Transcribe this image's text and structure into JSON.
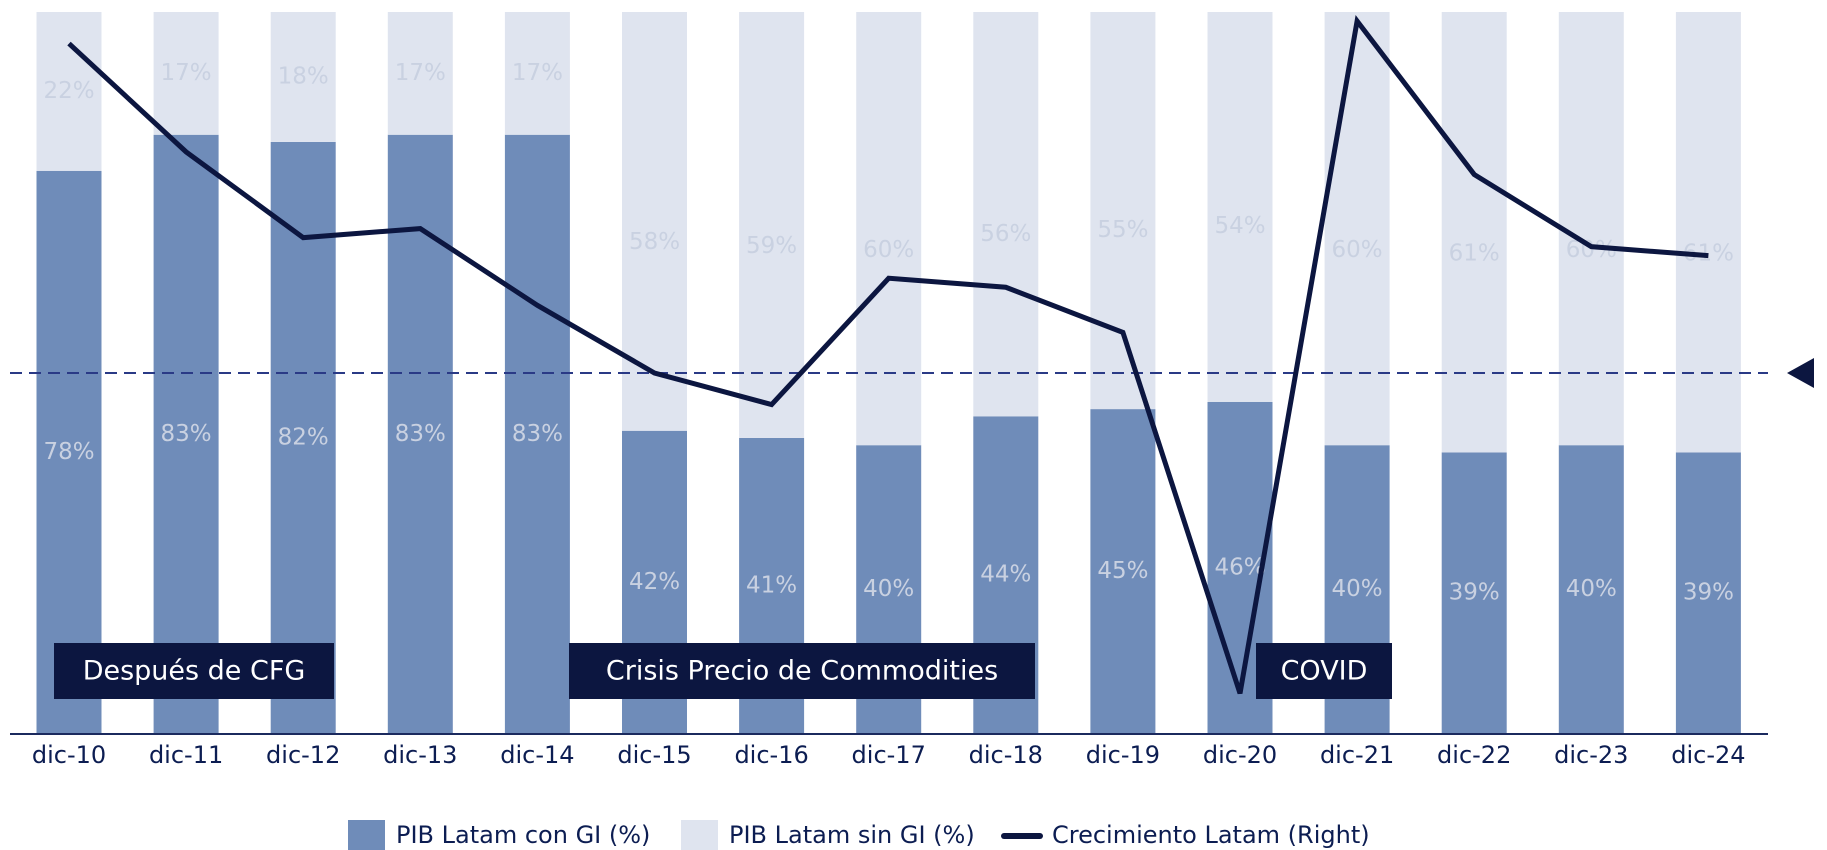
{
  "chart_data": {
    "type": "bar",
    "stacked": true,
    "categories": [
      "dic-10",
      "dic-11",
      "dic-12",
      "dic-13",
      "dic-14",
      "dic-15",
      "dic-16",
      "dic-17",
      "dic-18",
      "dic-19",
      "dic-20",
      "dic-21",
      "dic-22",
      "dic-23",
      "dic-24"
    ],
    "ylim": [
      0,
      100
    ],
    "y2lim": [
      -8,
      8
    ],
    "hline_y2": 0,
    "series": [
      {
        "name": "PIB Latam con GI (%)",
        "color": "#6f8cb9",
        "values": [
          78,
          83,
          82,
          83,
          83,
          42,
          41,
          40,
          44,
          45,
          46,
          40,
          39,
          40,
          39
        ],
        "value_labels": [
          "78%",
          "83%",
          "82%",
          "83%",
          "83%",
          "42%",
          "41%",
          "40%",
          "44%",
          "45%",
          "46%",
          "40%",
          "39%",
          "40%",
          "39%"
        ]
      },
      {
        "name": "PIB Latam sin GI (%)",
        "color": "#dfe4ef",
        "values": [
          22,
          17,
          18,
          17,
          17,
          58,
          59,
          60,
          56,
          55,
          54,
          60,
          61,
          60,
          61
        ],
        "value_labels": [
          "22%",
          "17%",
          "18%",
          "17%",
          "17%",
          "58%",
          "59%",
          "60%",
          "56%",
          "55%",
          "54%",
          "60%",
          "61%",
          "60%",
          "61%"
        ]
      },
      {
        "name": "Crecimiento Latam (Right)",
        "color": "#0c1640",
        "type": "line",
        "axis": "y2",
        "values": [
          7.3,
          4.9,
          3.0,
          3.2,
          1.5,
          0,
          -0.7,
          2.1,
          1.9,
          0.9,
          -7.1,
          7.8,
          4.4,
          2.8,
          2.6
        ]
      }
    ],
    "annotations": [
      "Después de CFG",
      "Crisis Precio de Commodities",
      "COVID"
    ]
  }
}
